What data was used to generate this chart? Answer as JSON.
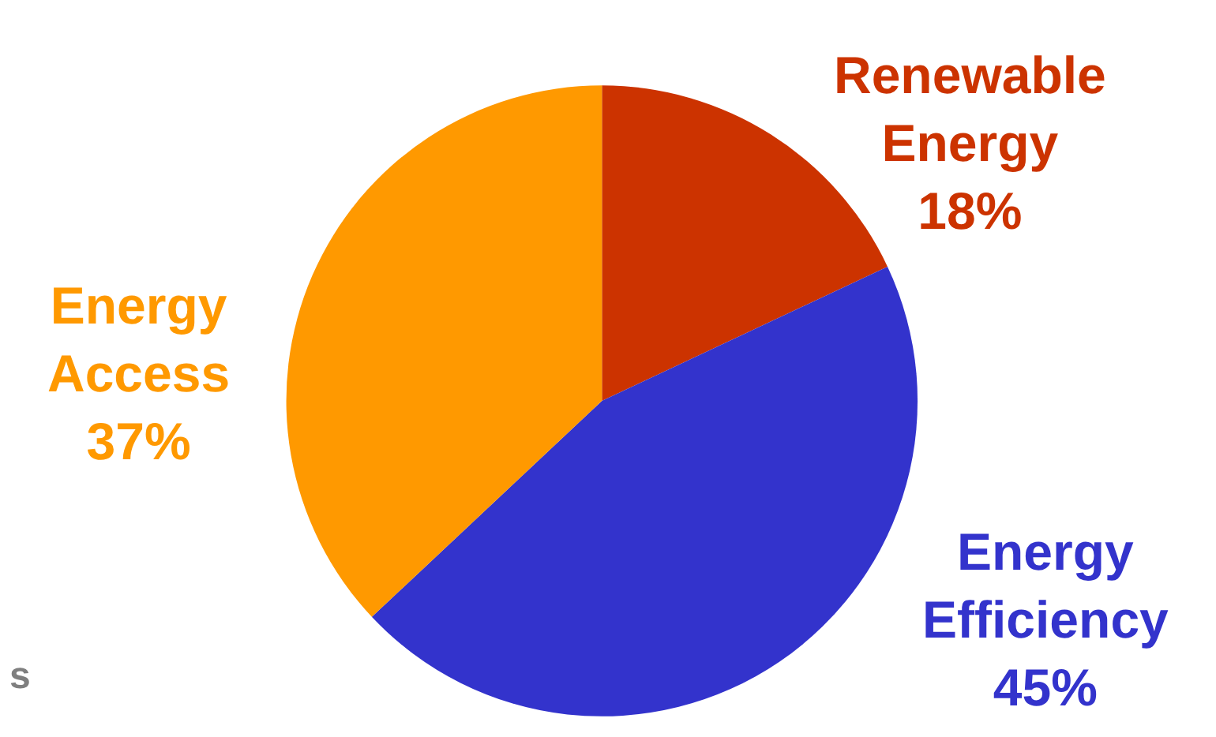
{
  "chart_data": {
    "type": "pie",
    "categories": [
      "Renewable Energy",
      "Energy Efficiency",
      "Energy Access"
    ],
    "values": [
      18,
      45,
      37
    ],
    "colors": [
      "#cc3300",
      "#3333cc",
      "#ff9900"
    ],
    "value_labels": [
      "18%",
      "45%",
      "37%"
    ],
    "legend": false,
    "annotations": [
      "s"
    ]
  }
}
